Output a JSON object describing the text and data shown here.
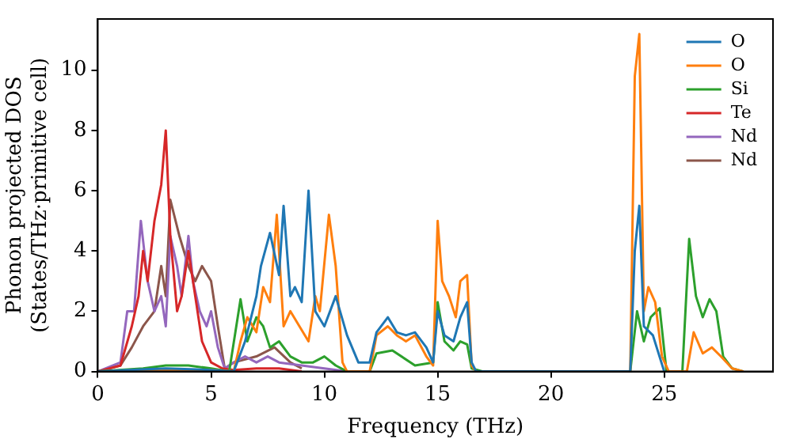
{
  "chart_data": {
    "type": "line",
    "xlabel": "Frequency (THz)",
    "ylabel": "Phonon projected DOS\n(States/THz·primitive cell)",
    "xlim": [
      0,
      29.8
    ],
    "ylim": [
      0,
      11.7
    ],
    "xticks": [
      0,
      5,
      10,
      15,
      20,
      25
    ],
    "yticks": [
      0,
      2,
      4,
      6,
      8,
      10
    ],
    "grid": false,
    "legend": "top right",
    "marker": "none",
    "line_style": "solid",
    "series": [
      {
        "name": "O",
        "color": "#1f77b4",
        "x": [
          0,
          3,
          5,
          6,
          6.5,
          7,
          7.2,
          7.6,
          8,
          8.2,
          8.5,
          8.7,
          9,
          9.3,
          9.6,
          10,
          10.5,
          11,
          11.5,
          12,
          12.3,
          12.8,
          13.2,
          13.6,
          14,
          14.5,
          14.8,
          15,
          15.3,
          15.7,
          16,
          16.3,
          16.5,
          16.7,
          23.5,
          23.7,
          23.9,
          24.1,
          24.5,
          25
        ],
        "values": [
          0,
          0.1,
          0.05,
          0,
          1,
          2.5,
          3.5,
          4.6,
          3.2,
          5.5,
          2.5,
          2.8,
          2.3,
          6,
          2,
          1.5,
          2.5,
          1.2,
          0.3,
          0.3,
          1.3,
          1.8,
          1.3,
          1.2,
          1.3,
          0.8,
          0.3,
          2,
          1.2,
          1,
          1.8,
          2.3,
          0.3,
          0,
          0,
          4,
          5.5,
          1.5,
          1.2,
          0
        ]
      },
      {
        "name": "O",
        "color": "#ff7f0e",
        "x": [
          0,
          5,
          6,
          6.3,
          6.6,
          7,
          7.3,
          7.6,
          7.9,
          8.2,
          8.5,
          8.9,
          9.3,
          9.6,
          9.8,
          10.2,
          10.5,
          10.8,
          11,
          12,
          12.3,
          12.8,
          13.2,
          13.6,
          14,
          14.5,
          14.8,
          15,
          15.2,
          15.5,
          15.8,
          16,
          16.3,
          16.5,
          16.7,
          23.5,
          23.7,
          23.9,
          24.1,
          24.3,
          24.6,
          24.9,
          25.2,
          26,
          26.3,
          26.7,
          27.1,
          27.5,
          28,
          28.5
        ],
        "values": [
          0,
          0.05,
          0,
          1,
          1.8,
          1.3,
          2.8,
          2.3,
          5.2,
          1.5,
          2,
          1.5,
          1,
          2.5,
          2,
          5.2,
          3.5,
          0.3,
          0,
          0,
          1.2,
          1.5,
          1.2,
          1,
          1.2,
          0.5,
          0.2,
          5,
          3,
          2.5,
          1.8,
          3,
          3.2,
          0.2,
          0,
          0,
          9.8,
          11.2,
          2,
          2.8,
          2.3,
          0.5,
          0,
          0,
          1.3,
          0.6,
          0.8,
          0.5,
          0.1,
          0
        ]
      },
      {
        "name": "Si",
        "color": "#2ca02c",
        "x": [
          0,
          2,
          3,
          4,
          5,
          5.8,
          6.3,
          6.6,
          7,
          7.3,
          7.6,
          8,
          8.5,
          9,
          9.5,
          10,
          10.5,
          11,
          12,
          12.3,
          13,
          14,
          14.8,
          15,
          15.3,
          15.7,
          16,
          16.3,
          16.5,
          17,
          23.5,
          23.8,
          24.1,
          24.4,
          24.8,
          25.1,
          25.8,
          26.1,
          26.4,
          26.7,
          27,
          27.3,
          27.6,
          28,
          28.5
        ],
        "values": [
          0,
          0.1,
          0.2,
          0.2,
          0.1,
          0,
          2.4,
          1,
          1.8,
          1.5,
          0.8,
          1,
          0.5,
          0.3,
          0.3,
          0.5,
          0.2,
          0,
          0,
          0.6,
          0.7,
          0.2,
          0.3,
          2.3,
          1,
          0.7,
          1,
          0.9,
          0.1,
          0,
          0,
          2,
          1,
          1.8,
          2.1,
          0,
          0,
          4.4,
          2.5,
          1.8,
          2.4,
          2,
          0.5,
          0.1,
          0
        ]
      },
      {
        "name": "Te",
        "color": "#d62728",
        "x": [
          0,
          1,
          1.5,
          1.8,
          2,
          2.2,
          2.5,
          2.8,
          3,
          3.2,
          3.5,
          3.7,
          4,
          4.3,
          4.6,
          5,
          5.5,
          6,
          7,
          8,
          9
        ],
        "values": [
          0,
          0.2,
          1.5,
          2.5,
          4,
          3,
          5,
          6.2,
          8,
          4.5,
          2,
          2.5,
          4,
          2.5,
          1,
          0.3,
          0.1,
          0.05,
          0.1,
          0.1,
          0
        ]
      },
      {
        "name": "Nd",
        "color": "#9467bd",
        "x": [
          0,
          1,
          1.3,
          1.6,
          1.9,
          2.2,
          2.5,
          2.8,
          3,
          3.2,
          3.5,
          3.7,
          4,
          4.2,
          4.5,
          4.8,
          5,
          5.3,
          5.6,
          6,
          6.5,
          7,
          7.5,
          8,
          9,
          10,
          11
        ],
        "values": [
          0,
          0.3,
          2,
          2,
          5,
          3,
          2,
          2.5,
          1.5,
          4.5,
          3.5,
          2.5,
          4.5,
          3,
          2,
          1.5,
          2,
          0.8,
          0.1,
          0.3,
          0.5,
          0.3,
          0.5,
          0.3,
          0.2,
          0.1,
          0
        ]
      },
      {
        "name": "Nd",
        "color": "#8c564b",
        "x": [
          0,
          1,
          1.5,
          2,
          2.5,
          2.8,
          3,
          3.2,
          3.6,
          4,
          4.3,
          4.6,
          5,
          5.3,
          5.6,
          6,
          7,
          7.8,
          8.5,
          9
        ],
        "values": [
          0,
          0.2,
          0.8,
          1.5,
          2,
          3.5,
          2.5,
          5.7,
          4.5,
          3.5,
          3,
          3.5,
          3,
          1.5,
          0.1,
          0.3,
          0.5,
          0.8,
          0.3,
          0.1
        ]
      }
    ]
  }
}
